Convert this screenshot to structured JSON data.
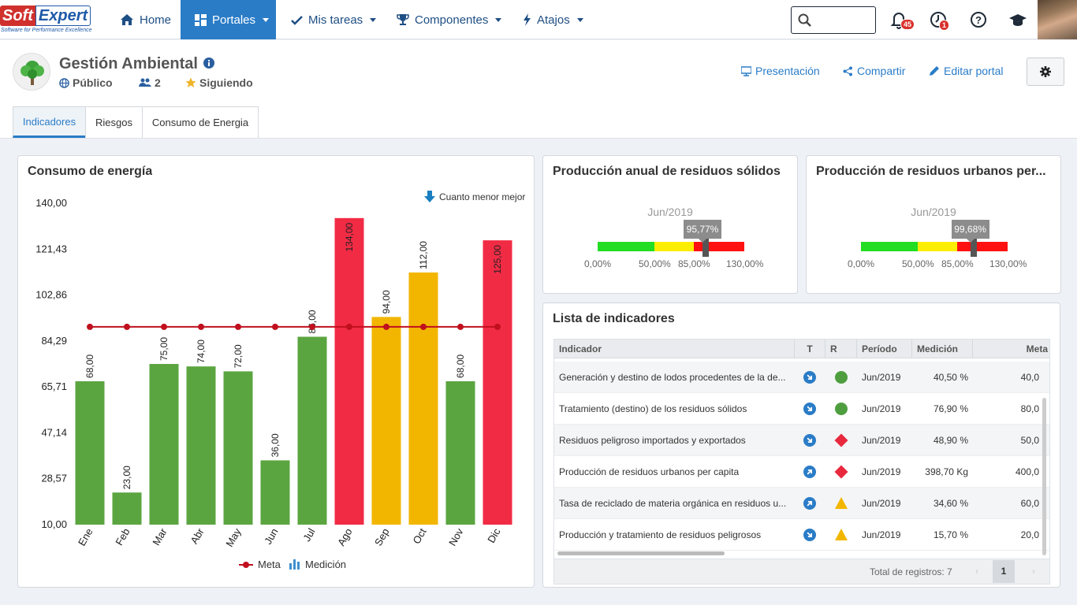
{
  "brand": {
    "name_part1": "Soft",
    "name_part2": "Expert",
    "tagline": "Software for Performance Excellence"
  },
  "nav": {
    "home": "Home",
    "portales": "Portales",
    "tareas": "Mis tareas",
    "componentes": "Componentes",
    "atajos": "Atajos",
    "search_placeholder": "",
    "notifications_count": "45",
    "alerts_count": "1"
  },
  "portal": {
    "title": "Gestión Ambiental",
    "visibility": "Público",
    "members": "2",
    "following": "Siguiendo",
    "presentation": "Presentación",
    "share": "Compartir",
    "edit": "Editar portal"
  },
  "tabs": [
    "Indicadores",
    "Riesgos",
    "Consumo de Energia"
  ],
  "energy_card": {
    "title": "Consumo de energía",
    "hint": "Cuanto menor mejor",
    "legend_meta": "Meta",
    "legend_medicion": "Medición"
  },
  "chart_data": {
    "type": "bar",
    "categories": [
      "Ene",
      "Feb",
      "Mar",
      "Abr",
      "May",
      "Jun",
      "Jul",
      "Ago",
      "Sep",
      "Oct",
      "Nov",
      "Dic"
    ],
    "y_ticks": [
      "140,00",
      "121,43",
      "102,86",
      "84,29",
      "65,71",
      "47,14",
      "28,57",
      "10,00"
    ],
    "ylim": [
      10,
      140
    ],
    "series": [
      {
        "name": "Medición",
        "values": [
          68,
          23,
          75,
          74,
          72,
          36,
          86,
          134,
          94,
          112,
          68,
          125
        ],
        "labels": [
          "68,00",
          "23,00",
          "75,00",
          "74,00",
          "72,00",
          "36,00",
          "86,00",
          "134,00",
          "94,00",
          "112,00",
          "68,00",
          "125,00"
        ],
        "colors": [
          "#5ba540",
          "#5ba540",
          "#5ba540",
          "#5ba540",
          "#5ba540",
          "#5ba540",
          "#5ba540",
          "#f22b45",
          "#f2b600",
          "#f2b600",
          "#5ba540",
          "#f22b45"
        ]
      },
      {
        "name": "Meta",
        "type": "line",
        "values": [
          90,
          90,
          90,
          90,
          90,
          90,
          90,
          90,
          90,
          90,
          90,
          90
        ],
        "color": "#c0101e"
      }
    ]
  },
  "gauge1": {
    "title": "Producción anual de residuos sólidos",
    "period": "Jun/2019",
    "value_label": "95,77%",
    "value": 95.77,
    "ticks": [
      "0,00%",
      "50,00%",
      "85,00%",
      "130,00%"
    ],
    "colors": [
      "#22dd22",
      "#ffee00",
      "#ff1111"
    ]
  },
  "gauge2": {
    "title": "Producción de residuos urbanos per...",
    "period": "Jun/2019",
    "value_label": "99,68%",
    "value": 99.68,
    "ticks": [
      "0,00%",
      "50,00%",
      "85,00%",
      "130,00%"
    ],
    "colors": [
      "#22dd22",
      "#ffee00",
      "#ff1111"
    ]
  },
  "table": {
    "title": "Lista de indicadores",
    "headers": {
      "indicador": "Indicador",
      "t": "T",
      "r": "R",
      "periodo": "Período",
      "medicion": "Medición",
      "meta": "Meta"
    },
    "rows": [
      {
        "indicador": "Generación y destino de lodos procedentes de la de...",
        "trend": "down",
        "status": "green",
        "periodo": "Jun/2019",
        "medicion": "40,50 %",
        "meta": "40,0"
      },
      {
        "indicador": "Tratamiento (destino) de los residuos sólidos",
        "trend": "down",
        "status": "green",
        "periodo": "Jun/2019",
        "medicion": "76,90 %",
        "meta": "80,0"
      },
      {
        "indicador": "Residuos peligroso importados y exportados",
        "trend": "down",
        "status": "red",
        "periodo": "Jun/2019",
        "medicion": "48,90 %",
        "meta": "50,0"
      },
      {
        "indicador": "Producción de residuos urbanos per capita",
        "trend": "up",
        "status": "red",
        "periodo": "Jun/2019",
        "medicion": "398,70 Kg",
        "meta": "400,0"
      },
      {
        "indicador": "Tasa de reciclado de materia orgánica en residuos u...",
        "trend": "up",
        "status": "yellow",
        "periodo": "Jun/2019",
        "medicion": "34,60 %",
        "meta": "60,0"
      },
      {
        "indicador": "Producción y tratamiento de residuos peligrosos",
        "trend": "down",
        "status": "yellow",
        "periodo": "Jun/2019",
        "medicion": "15,70 %",
        "meta": "20,0"
      }
    ],
    "total_label": "Total de registros: 7",
    "page": "1"
  }
}
